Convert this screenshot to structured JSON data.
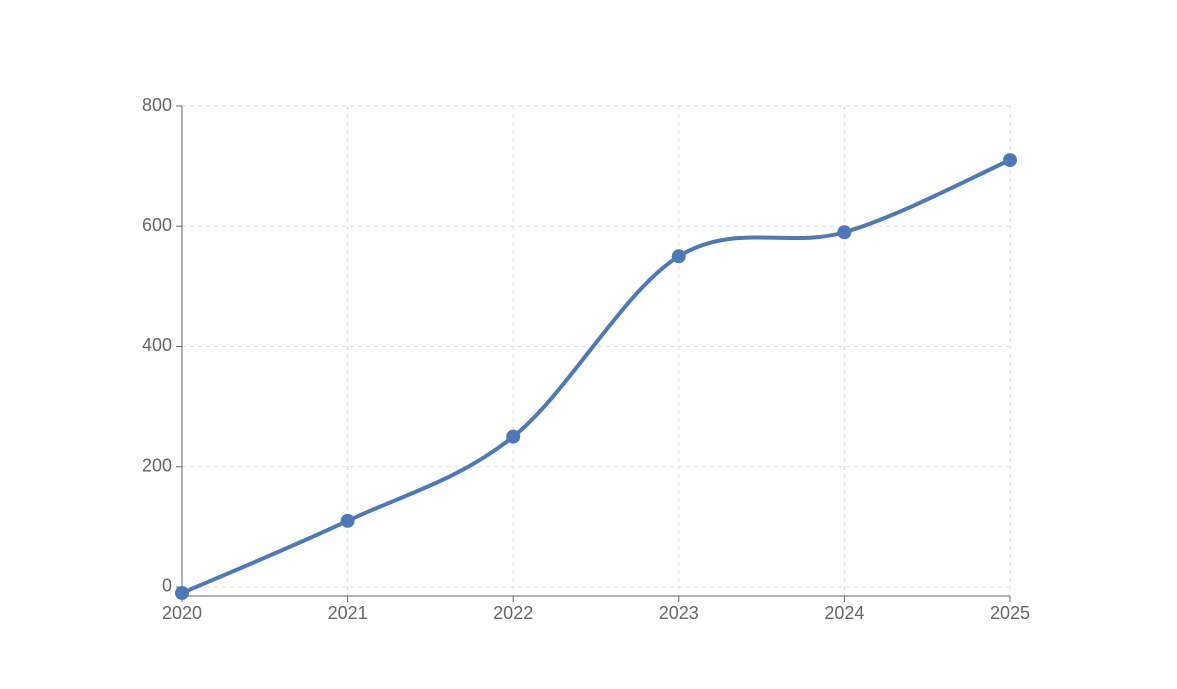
{
  "chart_data": {
    "type": "line",
    "x": [
      2020,
      2021,
      2022,
      2023,
      2024,
      2025
    ],
    "xlim": [
      2020,
      2025
    ],
    "xticks": [
      2020,
      2021,
      2022,
      2023,
      2024,
      2025
    ],
    "ylim": [
      -15,
      800
    ],
    "yticks": [
      0,
      200,
      400,
      600,
      800
    ],
    "grid": true,
    "smooth": true,
    "series": [
      {
        "color": "#4e79b9",
        "values": [
          -10,
          110,
          250,
          550,
          590,
          710
        ]
      }
    ]
  }
}
